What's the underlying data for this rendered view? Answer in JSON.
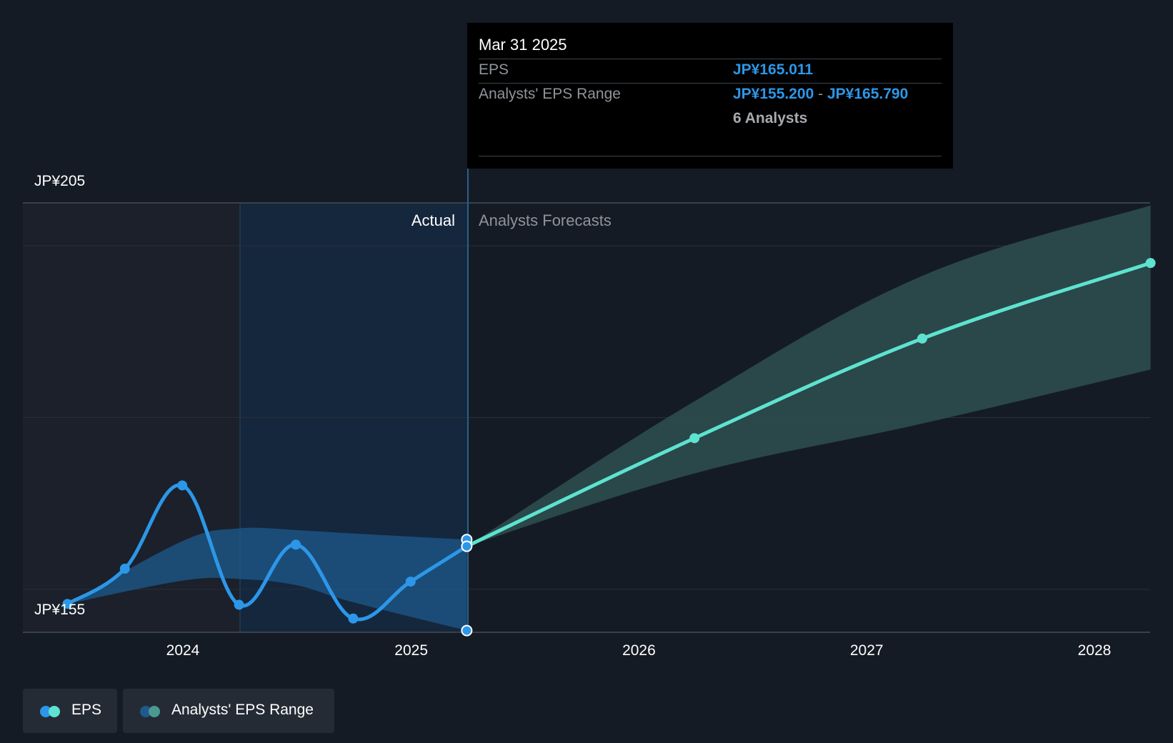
{
  "chart_data": {
    "type": "line",
    "y_axis": {
      "ticks": [
        "JP¥205",
        "JP¥155"
      ],
      "ylim": [
        155,
        205
      ],
      "unit": "JP¥"
    },
    "x_axis": {
      "ticks": [
        "2024",
        "2025",
        "2026",
        "2027",
        "2028"
      ]
    },
    "region_labels": {
      "actual": "Actual",
      "forecast": "Analysts Forecasts"
    },
    "series": [
      {
        "name": "EPS",
        "segment": "actual",
        "color": "#2c97e8",
        "points": [
          {
            "x": "2023-06-30",
            "y": 158.3
          },
          {
            "x": "2023-09-30",
            "y": 162.4
          },
          {
            "x": "2023-12-31",
            "y": 172.1
          },
          {
            "x": "2024-03-31",
            "y": 158.2
          },
          {
            "x": "2024-06-30",
            "y": 165.2
          },
          {
            "x": "2024-09-30",
            "y": 156.6
          },
          {
            "x": "2024-12-31",
            "y": 160.9
          },
          {
            "x": "2025-03-31",
            "y": 165.011
          }
        ]
      },
      {
        "name": "EPS",
        "segment": "forecast",
        "color": "#5de3cf",
        "points": [
          {
            "x": "2025-03-31",
            "y": 165.011
          },
          {
            "x": "2026-03-31",
            "y": 177.6
          },
          {
            "x": "2027-03-31",
            "y": 189.2
          },
          {
            "x": "2028-03-31",
            "y": 198.0
          }
        ]
      }
    ],
    "ranges": [
      {
        "name": "Analysts' EPS Range",
        "segment": "actual",
        "color": "#1e5a8c",
        "points": [
          {
            "x": "2023-06-30",
            "low": 158.3,
            "high": 158.3
          },
          {
            "x": "2023-12-31",
            "low": 161.0,
            "high": 165.6
          },
          {
            "x": "2024-03-31",
            "low": 161.2,
            "high": 167.1
          },
          {
            "x": "2024-06-30",
            "low": 160.5,
            "high": 166.9
          },
          {
            "x": "2024-09-30",
            "low": 158.5,
            "high": 166.5
          },
          {
            "x": "2025-03-31",
            "low": 155.2,
            "high": 165.79
          }
        ]
      },
      {
        "name": "Analysts' EPS Range",
        "segment": "forecast",
        "color": "#2e4f50",
        "points": [
          {
            "x": "2025-03-31",
            "low": 165.011,
            "high": 165.011
          },
          {
            "x": "2026-03-31",
            "low": 173.5,
            "high": 181.9
          },
          {
            "x": "2027-03-31",
            "low": 179.3,
            "high": 196.5
          },
          {
            "x": "2028-03-31",
            "low": 185.6,
            "high": 204.7
          }
        ]
      }
    ],
    "markers_at_cutoff": [
      165.79,
      165.011,
      155.2
    ],
    "legend": [
      "EPS",
      "Analysts' EPS Range"
    ]
  },
  "tooltip": {
    "date": "Mar 31 2025",
    "eps_label": "EPS",
    "eps_value": "JP¥165.011",
    "range_label": "Analysts' EPS Range",
    "range_low": "JP¥155.200",
    "range_sep": "-",
    "range_high": "JP¥165.790",
    "analysts": "6 Analysts"
  },
  "legend": {
    "eps_label": "EPS",
    "range_label": "Analysts' EPS Range",
    "eps_colors": [
      "#2c97e8",
      "#5de3cf"
    ],
    "range_colors": [
      "#1e5a8c",
      "#4a9a92"
    ]
  }
}
